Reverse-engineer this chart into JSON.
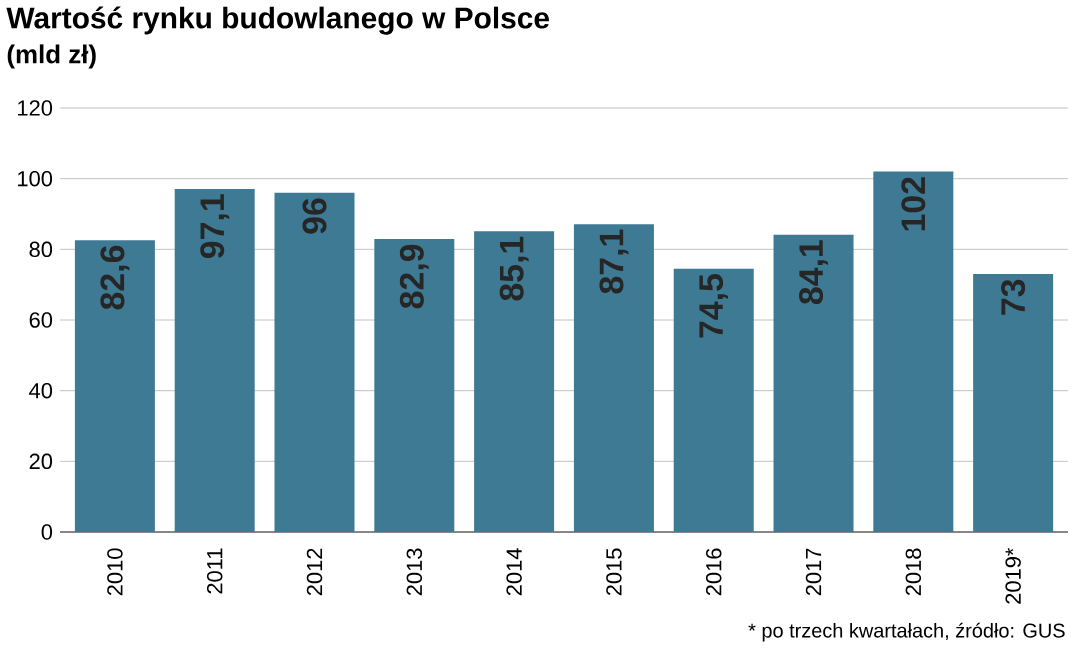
{
  "chart_data": {
    "type": "bar",
    "title": "Wartość rynku budowlanego w Polsce",
    "subtitle": "(mld zł)",
    "annotations": [
      "* po trzech kwartałach, źródło: GUS"
    ],
    "categories": [
      "2010",
      "2011",
      "2012",
      "2013",
      "2014",
      "2015",
      "2016",
      "2017",
      "2018",
      "2019*"
    ],
    "values": [
      82.6,
      97.1,
      96,
      82.9,
      85.1,
      87.1,
      74.5,
      84.1,
      102,
      73
    ],
    "value_labels": [
      "82,6",
      "97,1",
      "96",
      "82,9",
      "85,1",
      "87,1",
      "74,5",
      "84,1",
      "102",
      "73"
    ],
    "color": "#3e7a94",
    "ylim": [
      0,
      120
    ],
    "yticks": [
      0,
      20,
      40,
      60,
      80,
      100,
      120
    ],
    "grid": "y"
  }
}
